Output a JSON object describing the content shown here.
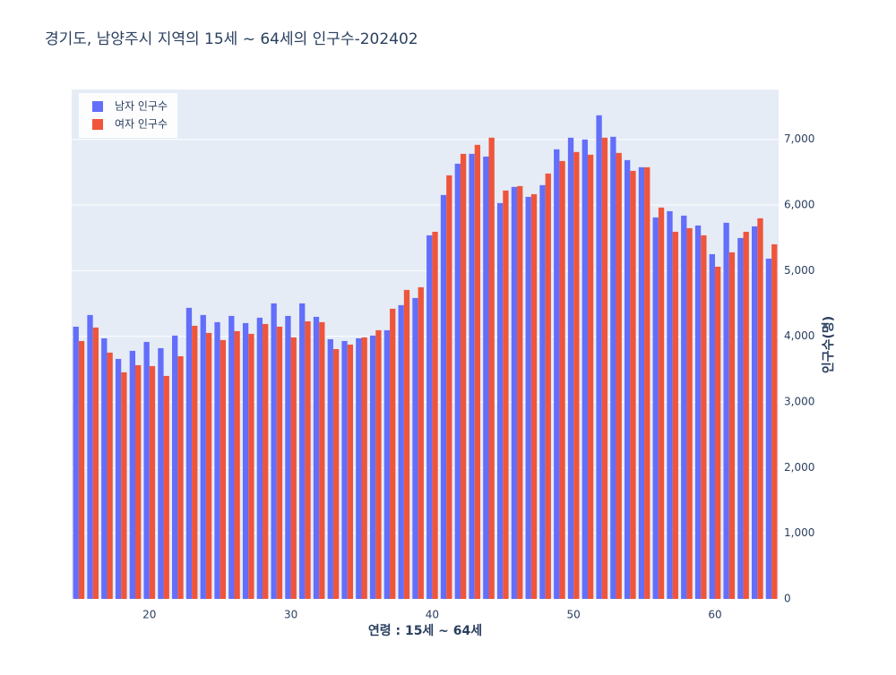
{
  "chart_data": {
    "type": "bar",
    "title": "경기도,  남양주시 지역의 15세 ~ 64세의 인구수-202402",
    "x_label": "연령 : 15세 ~ 64세",
    "y_label": "인구수(명)",
    "x": [
      15,
      16,
      17,
      18,
      19,
      20,
      21,
      22,
      23,
      24,
      25,
      26,
      27,
      28,
      29,
      30,
      31,
      32,
      33,
      34,
      35,
      36,
      37,
      38,
      39,
      40,
      41,
      42,
      43,
      44,
      45,
      46,
      47,
      48,
      49,
      50,
      51,
      52,
      53,
      54,
      55,
      56,
      57,
      58,
      59,
      60,
      61,
      62,
      63,
      64
    ],
    "series": [
      {
        "name": "남자 인구수",
        "color": "#636efa",
        "values": [
          4147,
          4325,
          3970,
          3656,
          3779,
          3915,
          3820,
          4011,
          4434,
          4325,
          4216,
          4311,
          4202,
          4284,
          4502,
          4311,
          4502,
          4297,
          3956,
          3929,
          3970,
          4011,
          4093,
          4475,
          4584,
          5539,
          6153,
          6630,
          6780,
          6739,
          6030,
          6276,
          6125,
          6303,
          6849,
          7026,
          6999,
          7367,
          7040,
          6685,
          6576,
          5812,
          5907,
          5839,
          5689,
          5252,
          5730,
          5498,
          5675,
          5184
        ]
      },
      {
        "name": "여자 인구수",
        "color": "#EF553B",
        "values": [
          3929,
          4134,
          3752,
          3452,
          3561,
          3547,
          3397,
          3697,
          4161,
          4052,
          3943,
          4079,
          4038,
          4188,
          4147,
          3984,
          4229,
          4216,
          3806,
          3874,
          3984,
          4093,
          4420,
          4707,
          4748,
          5593,
          6453,
          6780,
          6917,
          7026,
          6221,
          6289,
          6166,
          6480,
          6671,
          6808,
          6767,
          7026,
          6794,
          6521,
          6576,
          5962,
          5593,
          5648,
          5539,
          5061,
          5280,
          5593,
          5798,
          5402
        ]
      }
    ],
    "xlim": [
      14.5,
      64.5
    ],
    "xticks": [
      20,
      30,
      40,
      50,
      60
    ],
    "ylim": [
      0,
      7760
    ],
    "yticks": [
      0,
      {
        "value": 1000,
        "label": "1,000"
      },
      {
        "value": 2000,
        "label": "2,000"
      },
      {
        "value": 3000,
        "label": "3,000"
      },
      {
        "value": 4000,
        "label": "4,000"
      },
      {
        "value": 5000,
        "label": "5,000"
      },
      {
        "value": 6000,
        "label": "6,000"
      },
      {
        "value": 7000,
        "label": "7,000"
      }
    ],
    "grid": true,
    "legend": "top-left",
    "y_axis_side": "right",
    "background": "#e5ecf6"
  }
}
